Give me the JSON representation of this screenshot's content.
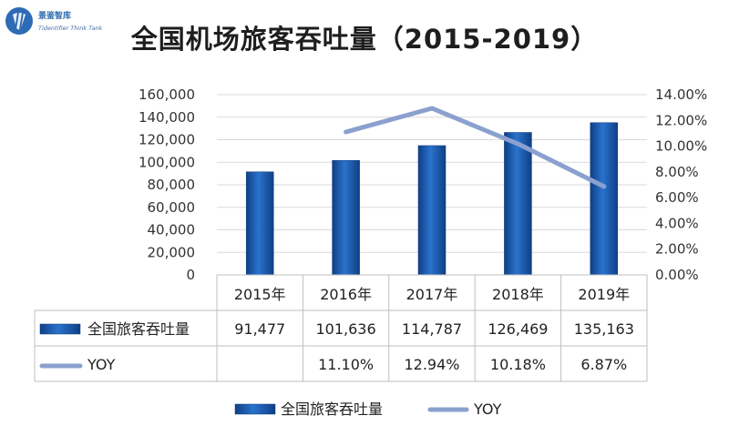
{
  "logo": {
    "name_cn": "景鉴智库",
    "name_en": "Tidentifier Think Tank"
  },
  "title": "全国机场旅客吞吐量（2015-2019）",
  "chart_data": {
    "type": "bar",
    "categories": [
      "2015年",
      "2016年",
      "2017年",
      "2018年",
      "2019年"
    ],
    "series": [
      {
        "name": "全国旅客吞吐量",
        "type": "bar",
        "axis": "left",
        "values": [
          91477,
          101636,
          114787,
          126469,
          135163
        ],
        "labels": [
          "91,477",
          "101,636",
          "114,787",
          "126,469",
          "135,163"
        ],
        "color": "#1f5fb3"
      },
      {
        "name": "YOY",
        "type": "line",
        "axis": "right",
        "values": [
          null,
          11.1,
          12.94,
          10.18,
          6.87
        ],
        "labels": [
          "",
          "11.10%",
          "12.94%",
          "10.18%",
          "6.87%"
        ],
        "color": "#8aa1cf"
      }
    ],
    "y_left": {
      "range": [
        0,
        160000
      ],
      "ticks": [
        "0",
        "20,000",
        "40,000",
        "60,000",
        "80,000",
        "100,000",
        "120,000",
        "140,000",
        "160,000"
      ]
    },
    "y_right": {
      "range": [
        0,
        14
      ],
      "ticks": [
        "0.00%",
        "2.00%",
        "4.00%",
        "6.00%",
        "8.00%",
        "10.00%",
        "12.00%",
        "14.00%"
      ]
    },
    "grid": true,
    "data_table": true,
    "legend": "bottom",
    "xlabel": "",
    "ylabel": ""
  }
}
